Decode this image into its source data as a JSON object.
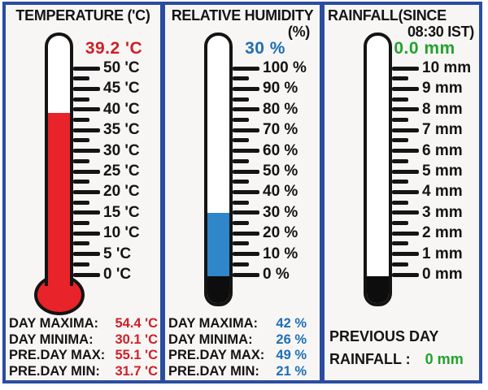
{
  "colors": {
    "frame": "#2a4da0",
    "panel_bg": "#f8f6f5",
    "ink": "#141414",
    "tube_empty": "#ffffff",
    "tube_bottom": "#0d0d0d",
    "temp_fill": "#e82329",
    "temp_text": "#cf2026",
    "hum_fill": "#2f86c9",
    "hum_text": "#1d6fb5",
    "rain_text": "#1fa32c"
  },
  "panels": [
    {
      "id": "temperature",
      "title_line1": "TEMPERATURE ('C)",
      "title_line2": "",
      "current_value": "39.2 'C",
      "value_num": 39.2,
      "scale_min": 0,
      "scale_max": 50,
      "tick_labels": [
        "50 'C",
        "45 'C",
        "40 'C",
        "35 'C",
        "30 'C",
        "25 'C",
        "20 'C",
        "15 'C",
        "10 'C",
        "5 'C",
        "0 'C"
      ],
      "tube_style": "bulb",
      "fill_color": "#e82329",
      "value_color": "#cf2026",
      "stats": [
        {
          "label": "DAY MAXIMA:",
          "value": "54.4 'C"
        },
        {
          "label": "DAY MINIMA:",
          "value": "30.1 'C"
        },
        {
          "label": "PRE.DAY MAX:",
          "value": "55.1 'C"
        },
        {
          "label": "PRE.DAY MIN:",
          "value": "31.7 'C"
        }
      ]
    },
    {
      "id": "humidity",
      "title_line1": "RELATIVE HUMIDITY",
      "title_line2": "(%)",
      "current_value": "30 %",
      "value_num": 30,
      "scale_min": 0,
      "scale_max": 100,
      "tick_labels": [
        "100 %",
        "90 %",
        "80 %",
        "70 %",
        "60 %",
        "50 %",
        "40 %",
        "30 %",
        "20 %",
        "10 %",
        "0 %"
      ],
      "tube_style": "flat",
      "fill_color": "#2f86c9",
      "value_color": "#1d6fb5",
      "stats": [
        {
          "label": "DAY MAXIMA:",
          "value": "42 %"
        },
        {
          "label": "DAY MINIMA:",
          "value": "26 %"
        },
        {
          "label": "PRE.DAY MAX:",
          "value": "49 %"
        },
        {
          "label": "PRE.DAY MIN:",
          "value": "21 %"
        }
      ]
    },
    {
      "id": "rainfall",
      "title_line1": "RAINFALL(SINCE",
      "title_line2": "08:30 IST)",
      "current_value": "0.0 mm",
      "value_num": 0,
      "scale_min": 0,
      "scale_max": 10,
      "tick_labels": [
        "10 mm",
        "9 mm",
        "8 mm",
        "7 mm",
        "6 mm",
        "5 mm",
        "4 mm",
        "3 mm",
        "2 mm",
        "1 mm",
        "0 mm"
      ],
      "tube_style": "flat",
      "fill_color": "#2f86c9",
      "value_color": "#1fa32c",
      "footer": {
        "line1": "PREVIOUS DAY",
        "line2_label": "RAINFALL :",
        "line2_value": "0 mm"
      }
    }
  ],
  "chart_data": [
    {
      "type": "gauge",
      "title": "TEMPERATURE ('C)",
      "unit": "'C",
      "axis_range": [
        0,
        50
      ],
      "major_step": 5,
      "minor_step": 2.5,
      "current": 39.2,
      "day_maxima": 54.4,
      "day_minima": 30.1,
      "previous_day_max": 55.1,
      "previous_day_min": 31.7
    },
    {
      "type": "gauge",
      "title": "RELATIVE HUMIDITY (%)",
      "unit": "%",
      "axis_range": [
        0,
        100
      ],
      "major_step": 10,
      "minor_step": 5,
      "current": 30,
      "day_maxima": 42,
      "day_minima": 26,
      "previous_day_max": 49,
      "previous_day_min": 21
    },
    {
      "type": "gauge",
      "title": "RAINFALL (SINCE 08:30 IST)",
      "unit": "mm",
      "axis_range": [
        0,
        10
      ],
      "major_step": 1,
      "minor_step": 0.5,
      "current": 0.0,
      "previous_day_rainfall": 0
    }
  ]
}
